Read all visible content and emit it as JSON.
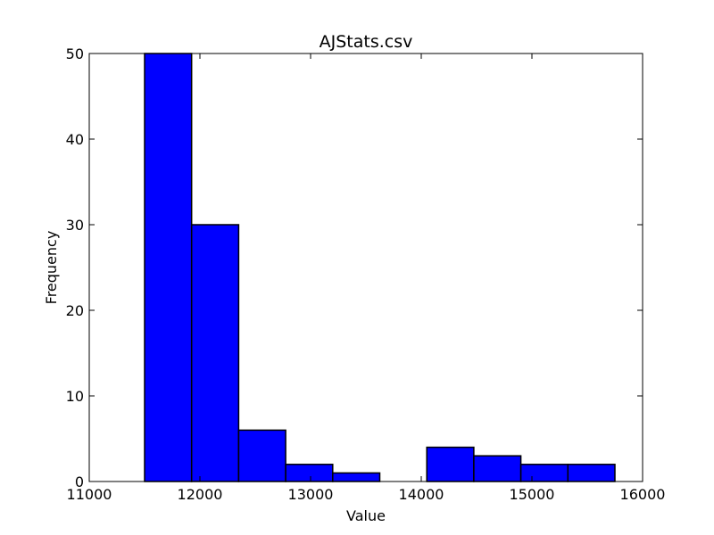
{
  "chart_data": {
    "type": "bar",
    "subtype": "histogram",
    "title": "AJStats.csv",
    "xlabel": "Value",
    "ylabel": "Frequency",
    "xlim": [
      11000,
      16000
    ],
    "ylim": [
      0,
      50
    ],
    "xticks": [
      "11000",
      "12000",
      "13000",
      "14000",
      "15000",
      "16000"
    ],
    "yticks": [
      "0",
      "10",
      "20",
      "30",
      "40",
      "50"
    ],
    "bins": [
      {
        "start": 11500,
        "end": 11925,
        "count": 50
      },
      {
        "start": 11925,
        "end": 12350,
        "count": 30
      },
      {
        "start": 12350,
        "end": 12775,
        "count": 6
      },
      {
        "start": 12775,
        "end": 13200,
        "count": 2
      },
      {
        "start": 13200,
        "end": 13625,
        "count": 1
      },
      {
        "start": 13625,
        "end": 14050,
        "count": 0
      },
      {
        "start": 14050,
        "end": 14475,
        "count": 4
      },
      {
        "start": 14475,
        "end": 14900,
        "count": 3
      },
      {
        "start": 14900,
        "end": 15325,
        "count": 2
      },
      {
        "start": 15325,
        "end": 15750,
        "count": 2
      }
    ],
    "bar_color": "#0000ff",
    "edge_color": "#000000",
    "grid": false,
    "legend": "none"
  }
}
